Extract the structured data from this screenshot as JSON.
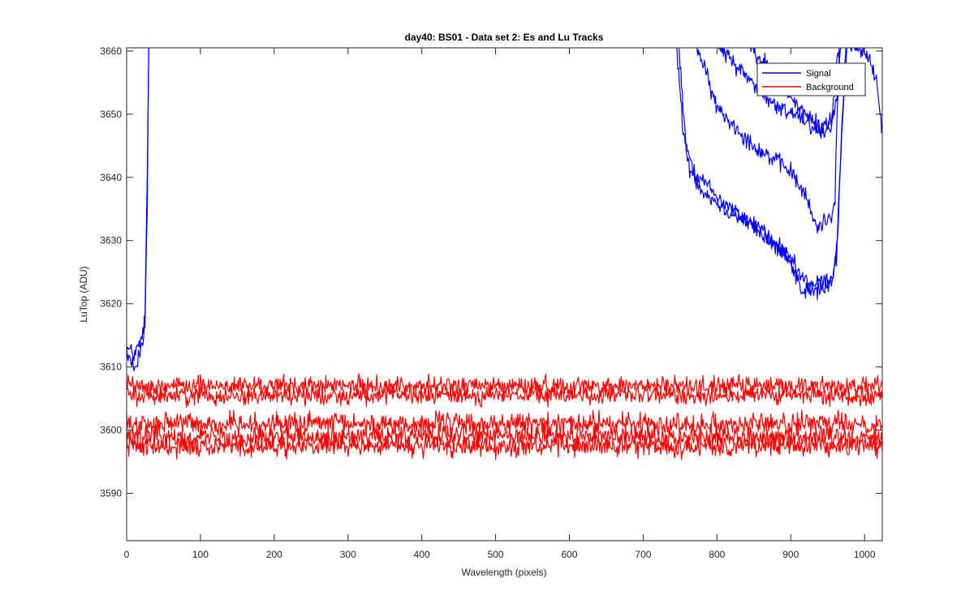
{
  "chart_data": {
    "type": "line",
    "title": "day40: BS01 - Data set 2: Es and Lu Tracks",
    "xlabel": "Wavelength (pixels)",
    "ylabel": "LuTop (ADU)",
    "xlim": [
      0,
      1024
    ],
    "ylim": [
      3582.5,
      3660.5
    ],
    "xticks": [
      0,
      100,
      200,
      300,
      400,
      500,
      600,
      700,
      800,
      900,
      1000
    ],
    "yticks": [
      3590,
      3600,
      3610,
      3620,
      3630,
      3640,
      3650,
      3660
    ],
    "grid": false,
    "legend": {
      "position": "top-right",
      "entries": [
        {
          "name": "Signal",
          "color": "#0000ff"
        },
        {
          "name": "Background",
          "color": "#ff0000"
        }
      ]
    },
    "series": [
      {
        "name": "Signal",
        "group": "Signal",
        "color": "#0000ff",
        "noise": 1.2,
        "points": [
          [
            0,
            3613
          ],
          [
            10,
            3612
          ],
          [
            20,
            3614
          ],
          [
            25,
            3618
          ],
          [
            28,
            3640
          ],
          [
            30,
            3661
          ],
          [
            null,
            null
          ],
          [
            745,
            3661
          ],
          [
            755,
            3646
          ],
          [
            770,
            3641
          ],
          [
            800,
            3637
          ],
          [
            830,
            3634
          ],
          [
            860,
            3632
          ],
          [
            880,
            3629
          ],
          [
            900,
            3627
          ],
          [
            915,
            3624
          ],
          [
            930,
            3623
          ],
          [
            955,
            3624
          ],
          [
            962,
            3628
          ],
          [
            968,
            3645
          ],
          [
            975,
            3661
          ]
        ]
      },
      {
        "name": "Signal",
        "group": "Signal",
        "color": "#0000ff",
        "noise": 1.2,
        "points": [
          [
            0,
            3611
          ],
          [
            10,
            3610
          ],
          [
            20,
            3613
          ],
          [
            25,
            3617
          ],
          [
            28,
            3635
          ],
          [
            30,
            3661
          ],
          [
            null,
            null
          ],
          [
            748,
            3661
          ],
          [
            760,
            3642
          ],
          [
            780,
            3638
          ],
          [
            810,
            3635
          ],
          [
            840,
            3633
          ],
          [
            870,
            3630
          ],
          [
            895,
            3628
          ],
          [
            915,
            3622
          ],
          [
            935,
            3622
          ],
          [
            955,
            3623
          ],
          [
            962,
            3627
          ],
          [
            968,
            3644
          ],
          [
            976,
            3661
          ]
        ]
      },
      {
        "name": "Signal",
        "group": "Signal",
        "color": "#0000ff",
        "noise": 1.2,
        "points": [
          [
            772,
            3661
          ],
          [
            800,
            3651
          ],
          [
            850,
            3645
          ],
          [
            900,
            3641
          ],
          [
            920,
            3637
          ],
          [
            935,
            3632
          ],
          [
            955,
            3634
          ],
          [
            960,
            3637
          ],
          [
            963,
            3650
          ],
          [
            966,
            3661
          ]
        ]
      },
      {
        "name": "Signal",
        "group": "Signal",
        "color": "#0000ff",
        "noise": 1.2,
        "points": [
          [
            800,
            3661
          ],
          [
            840,
            3656
          ],
          [
            880,
            3651
          ],
          [
            910,
            3650
          ],
          [
            940,
            3647
          ],
          [
            955,
            3648
          ],
          [
            962,
            3658
          ],
          [
            966,
            3661
          ]
        ]
      },
      {
        "name": "Signal",
        "group": "Signal",
        "color": "#0000ff",
        "noise": 1.2,
        "points": [
          [
            845,
            3661
          ],
          [
            880,
            3656
          ],
          [
            910,
            3651
          ],
          [
            940,
            3648
          ],
          [
            955,
            3649
          ],
          [
            962,
            3652
          ],
          [
            968,
            3661
          ]
        ]
      },
      {
        "name": "Signal",
        "group": "Signal",
        "color": "#0000ff",
        "noise": 1.2,
        "points": [
          [
            980,
            3661
          ],
          [
            1000,
            3660
          ],
          [
            1015,
            3656
          ],
          [
            1024,
            3648
          ]
        ]
      },
      {
        "name": "Background",
        "group": "Background",
        "color": "#ff0000",
        "noise": 1.3,
        "points": [
          [
            0,
            3607
          ],
          [
            1024,
            3607
          ]
        ]
      },
      {
        "name": "Background",
        "group": "Background",
        "color": "#ff0000",
        "noise": 1.3,
        "points": [
          [
            0,
            3605.5
          ],
          [
            1024,
            3605.5
          ]
        ]
      },
      {
        "name": "Background",
        "group": "Background",
        "color": "#ff0000",
        "noise": 1.5,
        "points": [
          [
            0,
            3601
          ],
          [
            1024,
            3601
          ]
        ]
      },
      {
        "name": "Background",
        "group": "Background",
        "color": "#ff0000",
        "noise": 1.5,
        "points": [
          [
            0,
            3599
          ],
          [
            1024,
            3599
          ]
        ]
      },
      {
        "name": "Background",
        "group": "Background",
        "color": "#ff0000",
        "noise": 1.5,
        "points": [
          [
            0,
            3597.5
          ],
          [
            1024,
            3597.5
          ]
        ]
      }
    ]
  }
}
